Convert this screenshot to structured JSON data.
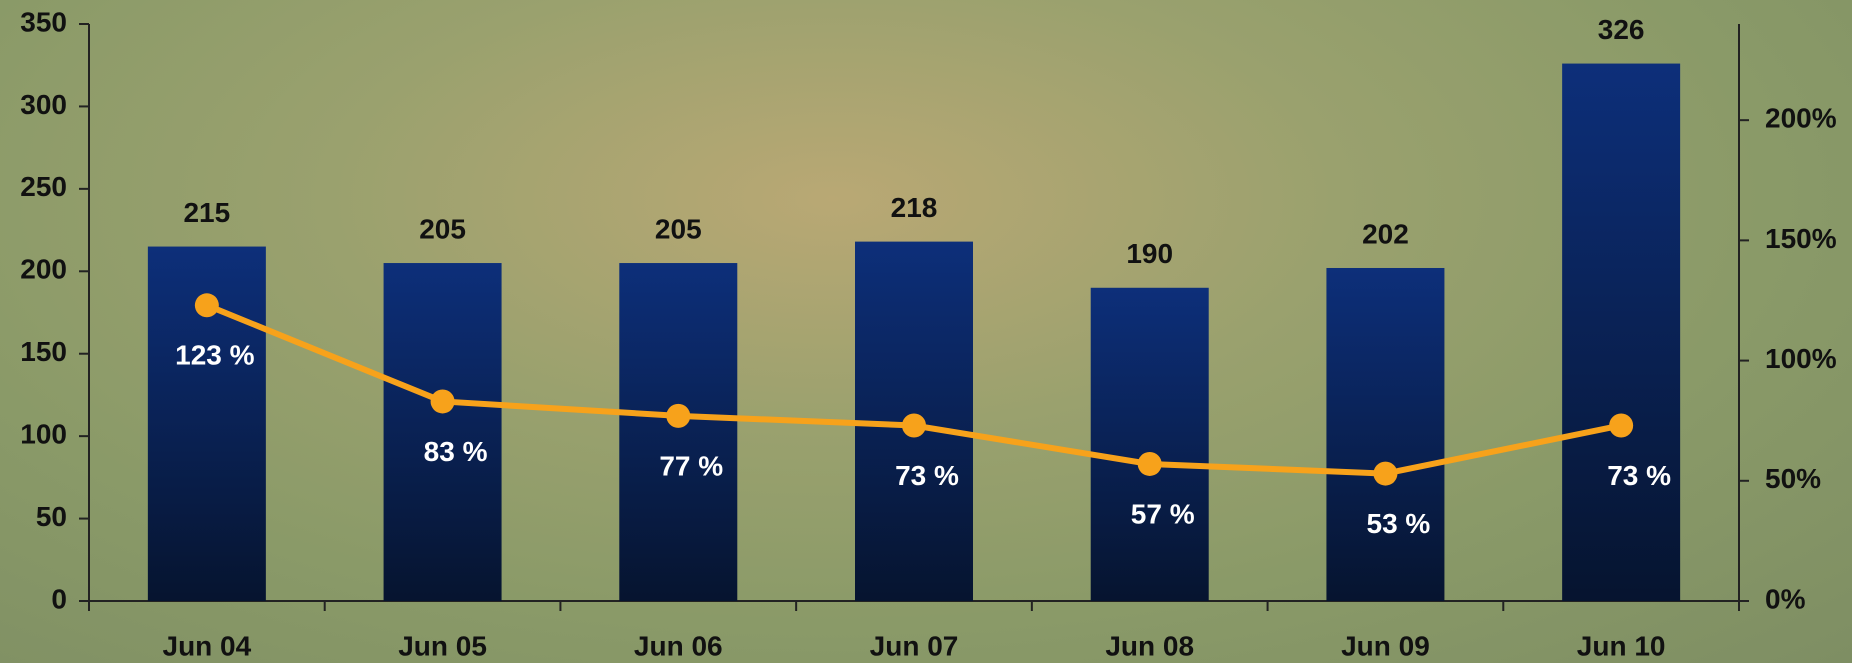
{
  "chart_data": {
    "type": "bar",
    "categories": [
      "Jun 04",
      "Jun 05",
      "Jun 06",
      "Jun 07",
      "Jun 08",
      "Jun 09",
      "Jun 10"
    ],
    "series": [
      {
        "type": "bar",
        "color": "#0d2f7a",
        "values": [
          215,
          205,
          205,
          218,
          190,
          202,
          326
        ]
      },
      {
        "type": "line",
        "axis": "y2",
        "color": "#f7a21b",
        "values": [
          123,
          83,
          77,
          73,
          57,
          53,
          73
        ],
        "value_labels": [
          "123 %",
          "83 %",
          "77 %",
          "73 %",
          "57 %",
          "53 %",
          "73 %"
        ]
      }
    ],
    "ylim": [
      0,
      350
    ],
    "yticks": [
      0,
      50,
      100,
      150,
      200,
      250,
      300,
      350
    ],
    "y2lim": [
      0,
      240
    ],
    "y2ticks": [
      {
        "value": 0,
        "label": "0%"
      },
      {
        "value": 50,
        "label": "50%"
      },
      {
        "value": 100,
        "label": "100%"
      },
      {
        "value": 150,
        "label": "150%"
      },
      {
        "value": 200,
        "label": "200%"
      }
    ]
  }
}
